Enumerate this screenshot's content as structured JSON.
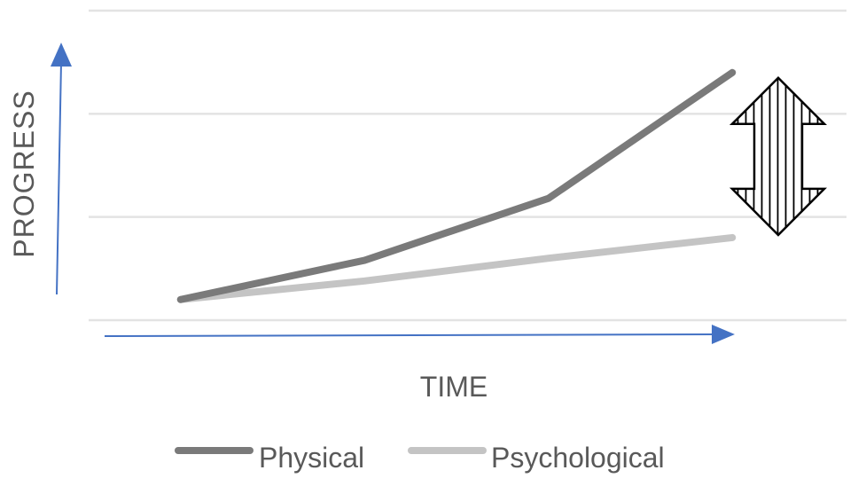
{
  "chart_data": {
    "type": "line",
    "title": "",
    "xlabel": "TIME",
    "ylabel": "PROGRESS",
    "x": [
      1,
      2,
      3,
      4
    ],
    "xlim": [
      0.5,
      4.5
    ],
    "ylim": [
      0,
      3
    ],
    "grid": true,
    "legend_position": "bottom",
    "series": [
      {
        "name": "Physical",
        "values": [
          0.2,
          0.58,
          1.18,
          2.4
        ],
        "color": "#7a7a7a"
      },
      {
        "name": "Psychological",
        "values": [
          0.2,
          0.38,
          0.6,
          0.8
        ],
        "color": "#c4c4c4"
      }
    ],
    "annotation": {
      "type": "double-headed-arrow",
      "between_series": [
        "Physical",
        "Psychological"
      ],
      "at_x": 4,
      "fill": "vertical-stripes"
    },
    "axis_arrow_color": "#4472c4",
    "grid_color": "#e3e3e3"
  }
}
